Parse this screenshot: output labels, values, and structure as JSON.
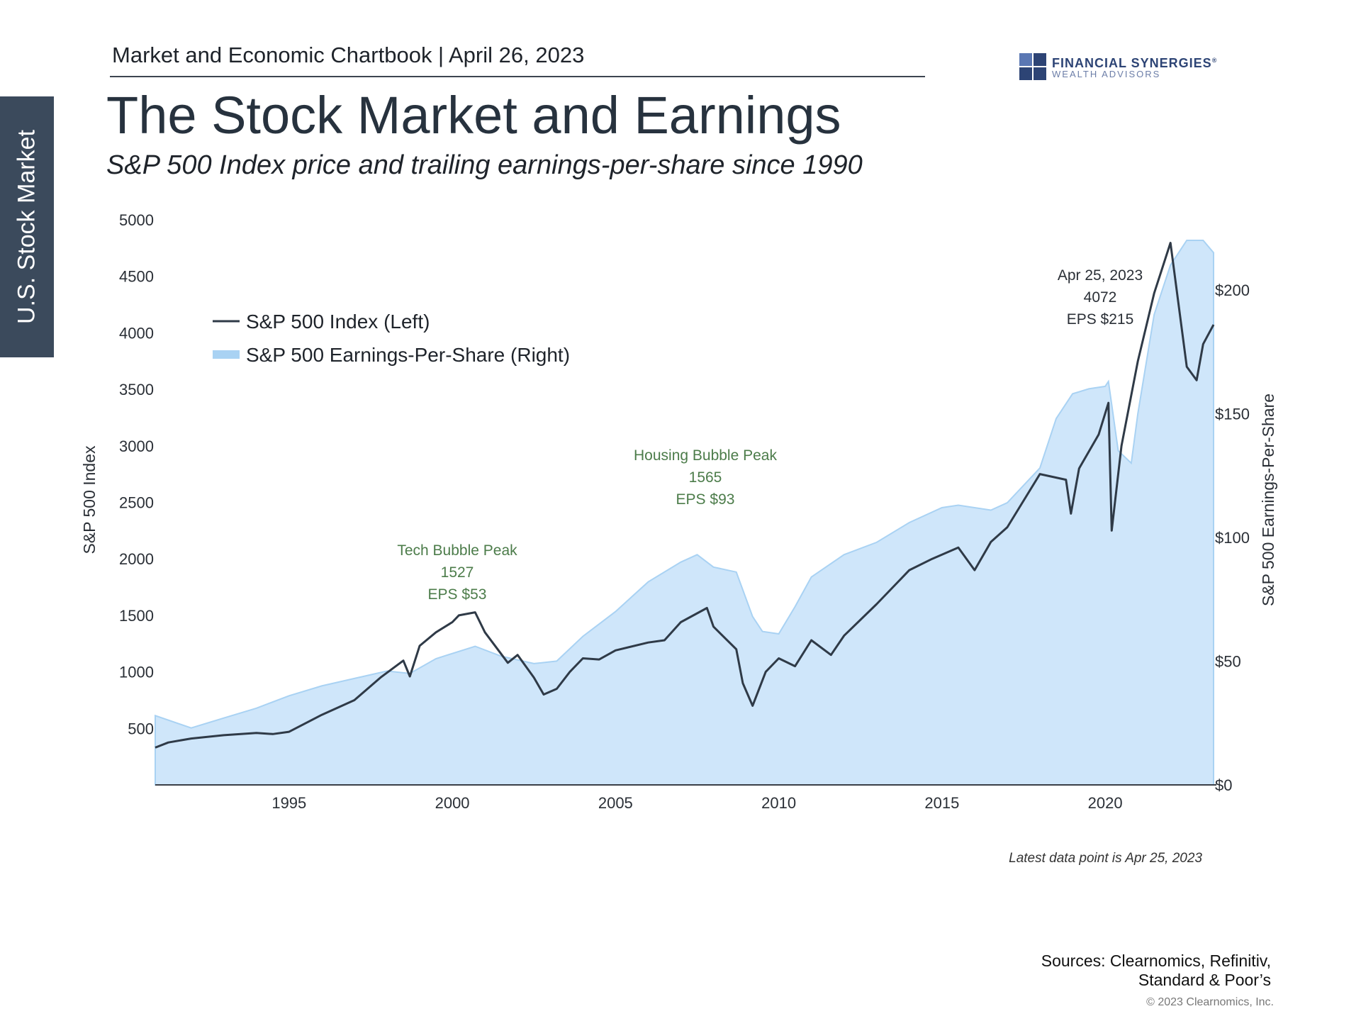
{
  "side_tab": "U.S. Stock Market",
  "header": "Market and Economic Chartbook | April 26, 2023",
  "logo": {
    "line1": "FINANCIAL SYNERGIES",
    "line2": "WEALTH ADVISORS",
    "mark": "®"
  },
  "title": "The Stock Market and Earnings",
  "subtitle": "S&P 500 Index price and trailing earnings-per-share since 1990",
  "latest_note": "Latest data point is Apr 25, 2023",
  "sources": {
    "line1": "Sources: Clearnomics, Refinitiv,",
    "line2": "Standard & Poor’s"
  },
  "copyright": "© 2023 Clearnomics, Inc.",
  "colors": {
    "index_line": "#2f3a47",
    "eps_fill": "#cfe6fa",
    "eps_edge": "#a9d2f3",
    "annotation_green": "#4c7c4a",
    "axis": "#3a3f47"
  },
  "chart_data": {
    "type": "line",
    "title": "The Stock Market and Earnings",
    "xlabel": "",
    "ylabel": "S&P 500 Index",
    "y2label": "S&P 500 Earnings-Per-Share",
    "xlim": [
      1990.9,
      2023.32
    ],
    "ylim": [
      0,
      5000
    ],
    "y2lim": [
      0,
      228.3
    ],
    "x_ticks": [
      1995,
      2000,
      2005,
      2010,
      2015,
      2020
    ],
    "y_ticks": [
      500,
      1000,
      1500,
      2000,
      2500,
      3000,
      3500,
      4000,
      4500,
      5000
    ],
    "y2_ticks": [
      {
        "value": 0,
        "label": "$0"
      },
      {
        "value": 50,
        "label": "$50"
      },
      {
        "value": 100,
        "label": "$100"
      },
      {
        "value": 150,
        "label": "$150"
      },
      {
        "value": 200,
        "label": "$200"
      }
    ],
    "legend": {
      "position": "top-left",
      "items": [
        "S&P 500 Index (Left)",
        "S&P 500 Earnings-Per-Share (Right)"
      ]
    },
    "series": [
      {
        "name": "S&P 500 Index (Left)",
        "type": "line",
        "axis": "left",
        "points": [
          [
            1990.9,
            330
          ],
          [
            1991.3,
            375
          ],
          [
            1992.0,
            410
          ],
          [
            1993.0,
            440
          ],
          [
            1994.0,
            460
          ],
          [
            1994.5,
            450
          ],
          [
            1995.0,
            470
          ],
          [
            1996.0,
            620
          ],
          [
            1997.0,
            750
          ],
          [
            1997.8,
            950
          ],
          [
            1998.5,
            1100
          ],
          [
            1998.7,
            960
          ],
          [
            1999.0,
            1230
          ],
          [
            1999.5,
            1350
          ],
          [
            2000.0,
            1440
          ],
          [
            2000.2,
            1500
          ],
          [
            2000.7,
            1527
          ],
          [
            2001.0,
            1350
          ],
          [
            2001.7,
            1080
          ],
          [
            2002.0,
            1150
          ],
          [
            2002.5,
            950
          ],
          [
            2002.8,
            800
          ],
          [
            2003.2,
            850
          ],
          [
            2003.6,
            1000
          ],
          [
            2004.0,
            1120
          ],
          [
            2004.5,
            1110
          ],
          [
            2005.0,
            1190
          ],
          [
            2006.0,
            1260
          ],
          [
            2006.5,
            1280
          ],
          [
            2007.0,
            1440
          ],
          [
            2007.8,
            1565
          ],
          [
            2008.0,
            1400
          ],
          [
            2008.7,
            1200
          ],
          [
            2008.9,
            900
          ],
          [
            2009.2,
            700
          ],
          [
            2009.6,
            1000
          ],
          [
            2010.0,
            1120
          ],
          [
            2010.5,
            1050
          ],
          [
            2011.0,
            1280
          ],
          [
            2011.6,
            1150
          ],
          [
            2012.0,
            1320
          ],
          [
            2013.0,
            1600
          ],
          [
            2014.0,
            1900
          ],
          [
            2014.7,
            2000
          ],
          [
            2015.5,
            2100
          ],
          [
            2016.0,
            1900
          ],
          [
            2016.5,
            2150
          ],
          [
            2017.0,
            2280
          ],
          [
            2018.0,
            2750
          ],
          [
            2018.8,
            2700
          ],
          [
            2018.95,
            2400
          ],
          [
            2019.2,
            2800
          ],
          [
            2019.8,
            3100
          ],
          [
            2020.1,
            3380
          ],
          [
            2020.2,
            2250
          ],
          [
            2020.5,
            3000
          ],
          [
            2021.0,
            3750
          ],
          [
            2021.5,
            4350
          ],
          [
            2022.0,
            4796
          ],
          [
            2022.5,
            3700
          ],
          [
            2022.8,
            3580
          ],
          [
            2023.0,
            3900
          ],
          [
            2023.32,
            4072
          ]
        ]
      },
      {
        "name": "S&P 500 Earnings-Per-Share (Right)",
        "type": "area",
        "axis": "right",
        "points": [
          [
            1990.9,
            28
          ],
          [
            1992.0,
            23
          ],
          [
            1993.0,
            27
          ],
          [
            1994.0,
            31
          ],
          [
            1995.0,
            36
          ],
          [
            1996.0,
            40
          ],
          [
            1997.0,
            43
          ],
          [
            1998.0,
            46
          ],
          [
            1998.7,
            45
          ],
          [
            1999.5,
            51
          ],
          [
            2000.7,
            56
          ],
          [
            2001.5,
            52
          ],
          [
            2002.5,
            49
          ],
          [
            2003.2,
            50
          ],
          [
            2004.0,
            60
          ],
          [
            2005.0,
            70
          ],
          [
            2006.0,
            82
          ],
          [
            2007.0,
            90
          ],
          [
            2007.5,
            93
          ],
          [
            2008.0,
            88
          ],
          [
            2008.7,
            86
          ],
          [
            2009.2,
            68
          ],
          [
            2009.5,
            62
          ],
          [
            2010.0,
            61
          ],
          [
            2010.5,
            72
          ],
          [
            2011.0,
            84
          ],
          [
            2012.0,
            93
          ],
          [
            2013.0,
            98
          ],
          [
            2014.0,
            106
          ],
          [
            2015.0,
            112
          ],
          [
            2015.5,
            113
          ],
          [
            2016.5,
            111
          ],
          [
            2017.0,
            114
          ],
          [
            2018.0,
            128
          ],
          [
            2018.5,
            148
          ],
          [
            2019.0,
            158
          ],
          [
            2019.5,
            160
          ],
          [
            2020.0,
            161
          ],
          [
            2020.1,
            163
          ],
          [
            2020.4,
            135
          ],
          [
            2020.8,
            130
          ],
          [
            2021.0,
            150
          ],
          [
            2021.5,
            190
          ],
          [
            2022.0,
            210
          ],
          [
            2022.5,
            220
          ],
          [
            2023.0,
            220
          ],
          [
            2023.32,
            215
          ]
        ]
      }
    ],
    "annotations": [
      {
        "label": "Tech Bubble Peak",
        "value": "1527",
        "eps": "EPS $53",
        "x": 2000.2
      },
      {
        "label": "Housing Bubble Peak",
        "value": "1565",
        "eps": "EPS $93",
        "x": 2007.6
      },
      {
        "label": "Apr 25, 2023",
        "value": "4072",
        "eps": "EPS $215",
        "x": 2020.0
      }
    ]
  }
}
